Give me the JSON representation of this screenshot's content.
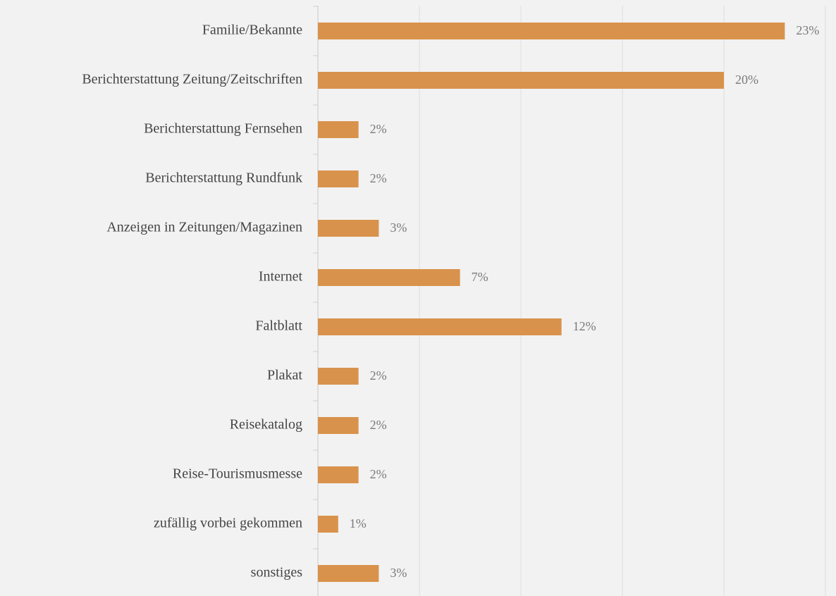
{
  "chart_data": {
    "type": "barh",
    "categories": [
      "Familie/Bekannte",
      "Berichterstattung Zeitung/Zeitschriften",
      "Berichterstattung Fernsehen",
      "Berichterstattung Rundfunk",
      "Anzeigen in Zeitungen/Magazinen",
      "Internet",
      "Faltblatt",
      "Plakat",
      "Reisekatalog",
      "Reise-Tourismusmesse",
      "zufällig vorbei gekommen",
      "sonstiges"
    ],
    "values": [
      23,
      20,
      2,
      2,
      3,
      7,
      12,
      2,
      2,
      2,
      1,
      3
    ],
    "value_labels": [
      "23%",
      "20%",
      "2%",
      "2%",
      "3%",
      "7%",
      "12%",
      "2%",
      "2%",
      "2%",
      "1%",
      "3%"
    ],
    "color": "#d9924c",
    "xlim": [
      0,
      25
    ],
    "xticks": [
      0,
      5,
      10,
      15,
      20,
      25
    ],
    "grid": true
  }
}
